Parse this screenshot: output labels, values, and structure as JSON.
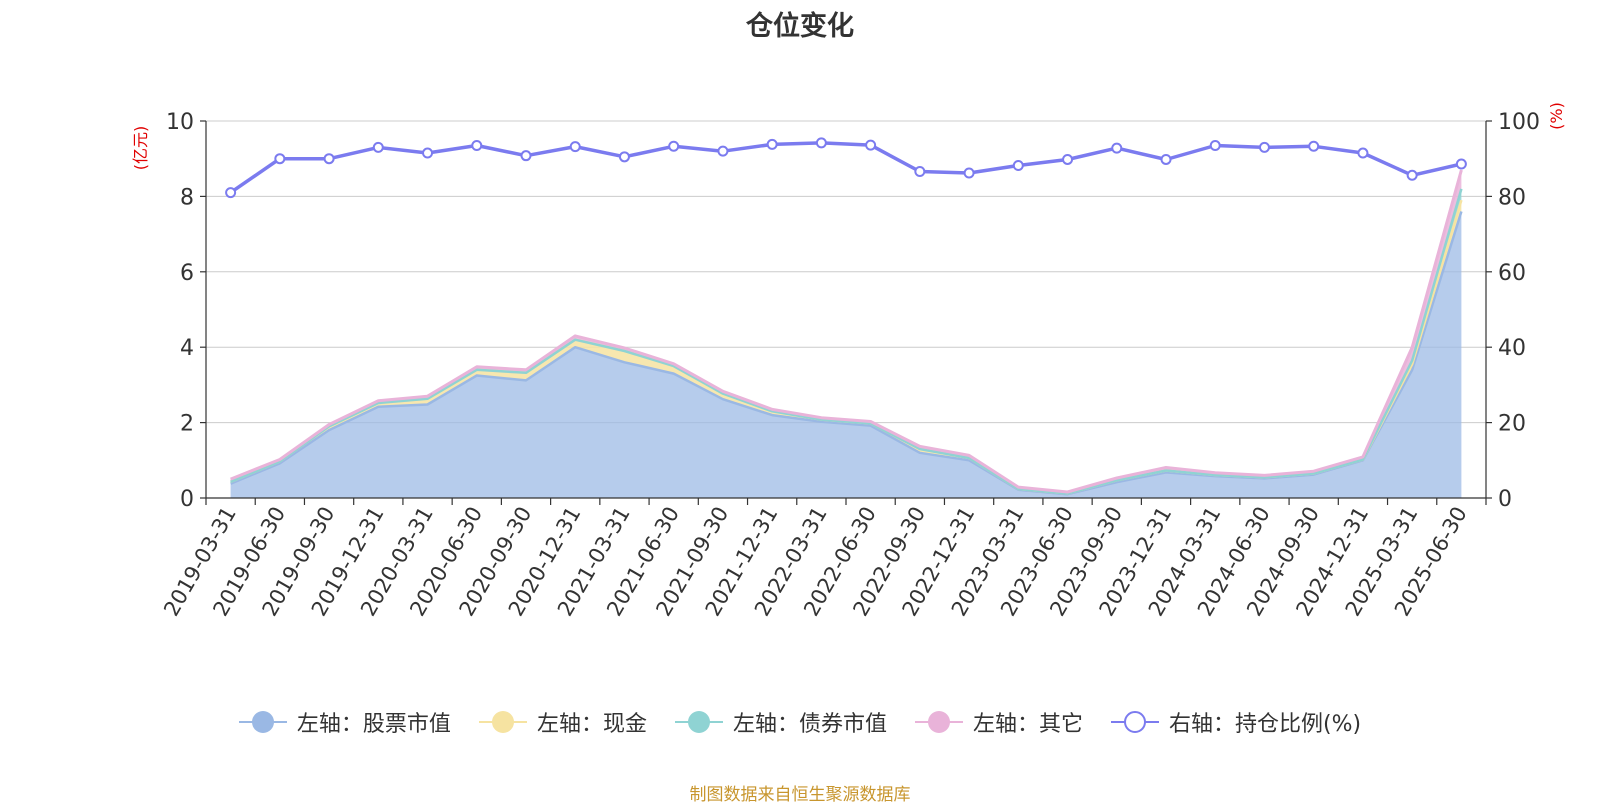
{
  "title": "仓位变化",
  "source_note": "制图数据来自恒生聚源数据库",
  "colors": {
    "stock": "#9ab8e4",
    "cash": "#f6e3a1",
    "bond": "#8fd3d3",
    "other": "#e9b3d9",
    "ratio": "#7b7bef"
  },
  "chart_data": {
    "type": "area",
    "title": "仓位变化",
    "ylabel_left": "(亿元)",
    "ylabel_right": "(%)",
    "ylim_left": [
      0,
      10
    ],
    "ylim_right": [
      0,
      100
    ],
    "yticks_left": [
      0,
      2,
      4,
      6,
      8,
      10
    ],
    "yticks_right": [
      0,
      20,
      40,
      60,
      80,
      100
    ],
    "grid": true,
    "legend_position": "bottom",
    "x": [
      "2019-03-31",
      "2019-06-30",
      "2019-09-30",
      "2019-12-31",
      "2020-03-31",
      "2020-06-30",
      "2020-09-30",
      "2020-12-31",
      "2021-03-31",
      "2021-06-30",
      "2021-09-30",
      "2021-12-31",
      "2022-03-31",
      "2022-06-30",
      "2022-09-30",
      "2022-12-31",
      "2023-03-31",
      "2023-06-30",
      "2023-09-30",
      "2023-12-31",
      "2024-03-31",
      "2024-06-30",
      "2024-09-30",
      "2024-12-31",
      "2025-03-31",
      "2025-06-30"
    ],
    "series": [
      {
        "key": "stock",
        "name": "左轴：股票市值",
        "axis": "left",
        "stacked": true,
        "values": [
          0.38,
          0.92,
          1.8,
          2.42,
          2.48,
          3.25,
          3.12,
          4.0,
          3.6,
          3.3,
          2.62,
          2.2,
          2.02,
          1.92,
          1.2,
          1.0,
          0.22,
          0.1,
          0.42,
          0.68,
          0.58,
          0.52,
          0.62,
          1.0,
          3.4,
          7.6
        ]
      },
      {
        "key": "cash",
        "name": "左轴：现金",
        "axis": "left",
        "stacked": true,
        "values": [
          0.05,
          0.05,
          0.1,
          0.1,
          0.15,
          0.15,
          0.2,
          0.2,
          0.3,
          0.2,
          0.15,
          0.1,
          0.06,
          0.06,
          0.1,
          0.06,
          0.02,
          0.02,
          0.05,
          0.05,
          0.03,
          0.03,
          0.03,
          0.02,
          0.15,
          0.3
        ]
      },
      {
        "key": "bond",
        "name": "左轴：债券市值",
        "axis": "left",
        "stacked": true,
        "values": [
          0,
          0,
          0,
          0,
          0,
          0,
          0,
          0,
          0,
          0,
          0,
          0,
          0,
          0,
          0,
          0,
          0,
          0,
          0,
          0,
          0,
          0,
          0,
          0,
          0.1,
          0.3
        ]
      },
      {
        "key": "other",
        "name": "左轴：其它",
        "axis": "left",
        "stacked": true,
        "values": [
          0.07,
          0.05,
          0.05,
          0.06,
          0.07,
          0.08,
          0.08,
          0.1,
          0.08,
          0.06,
          0.06,
          0.05,
          0.05,
          0.05,
          0.07,
          0.07,
          0.05,
          0.04,
          0.06,
          0.08,
          0.06,
          0.05,
          0.06,
          0.07,
          0.35,
          0.5
        ]
      },
      {
        "key": "ratio",
        "name": "右轴：持仓比例(%)",
        "axis": "right",
        "stacked": false,
        "values": [
          81,
          90,
          90,
          93,
          91.5,
          93.5,
          90.8,
          93.2,
          90.5,
          93.3,
          92,
          93.8,
          94.2,
          93.6,
          86.6,
          86.2,
          88.2,
          89.8,
          92.8,
          89.8,
          93.5,
          93,
          93.3,
          91.5,
          85.6,
          88.6
        ]
      }
    ]
  }
}
